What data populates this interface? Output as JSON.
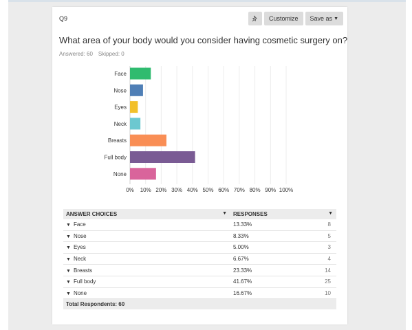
{
  "question": {
    "number": "Q9",
    "title": "What area of your body would you consider having cosmetic surgery on?",
    "answered": "Answered: 60",
    "skipped": "Skipped: 0"
  },
  "toolbar": {
    "pin_icon": "pin-icon",
    "customize_label": "Customize",
    "save_as_label": "Save as"
  },
  "chart_data": {
    "type": "bar",
    "orientation": "horizontal",
    "categories": [
      "Face",
      "Nose",
      "Eyes",
      "Neck",
      "Breasts",
      "Full body",
      "None"
    ],
    "values": [
      13.33,
      8.33,
      5.0,
      6.67,
      23.33,
      41.67,
      16.67
    ],
    "colors": [
      "#2fbb6f",
      "#4f7fb6",
      "#f2c02b",
      "#6cc8d0",
      "#f98e55",
      "#7a5b94",
      "#d9649b"
    ],
    "x_ticks": [
      "0%",
      "10%",
      "20%",
      "30%",
      "40%",
      "50%",
      "60%",
      "70%",
      "80%",
      "90%",
      "100%"
    ],
    "xlim": [
      0,
      100
    ],
    "grid": true
  },
  "table": {
    "headers": {
      "choice": "ANSWER CHOICES",
      "responses": "RESPONSES"
    },
    "rows": [
      {
        "choice": "Face",
        "percent": "13.33%",
        "count": "8"
      },
      {
        "choice": "Nose",
        "percent": "8.33%",
        "count": "5"
      },
      {
        "choice": "Eyes",
        "percent": "5.00%",
        "count": "3"
      },
      {
        "choice": "Neck",
        "percent": "6.67%",
        "count": "4"
      },
      {
        "choice": "Breasts",
        "percent": "23.33%",
        "count": "14"
      },
      {
        "choice": "Full body",
        "percent": "41.67%",
        "count": "25"
      },
      {
        "choice": "None",
        "percent": "16.67%",
        "count": "10"
      }
    ],
    "total_label": "Total Respondents: 60"
  }
}
